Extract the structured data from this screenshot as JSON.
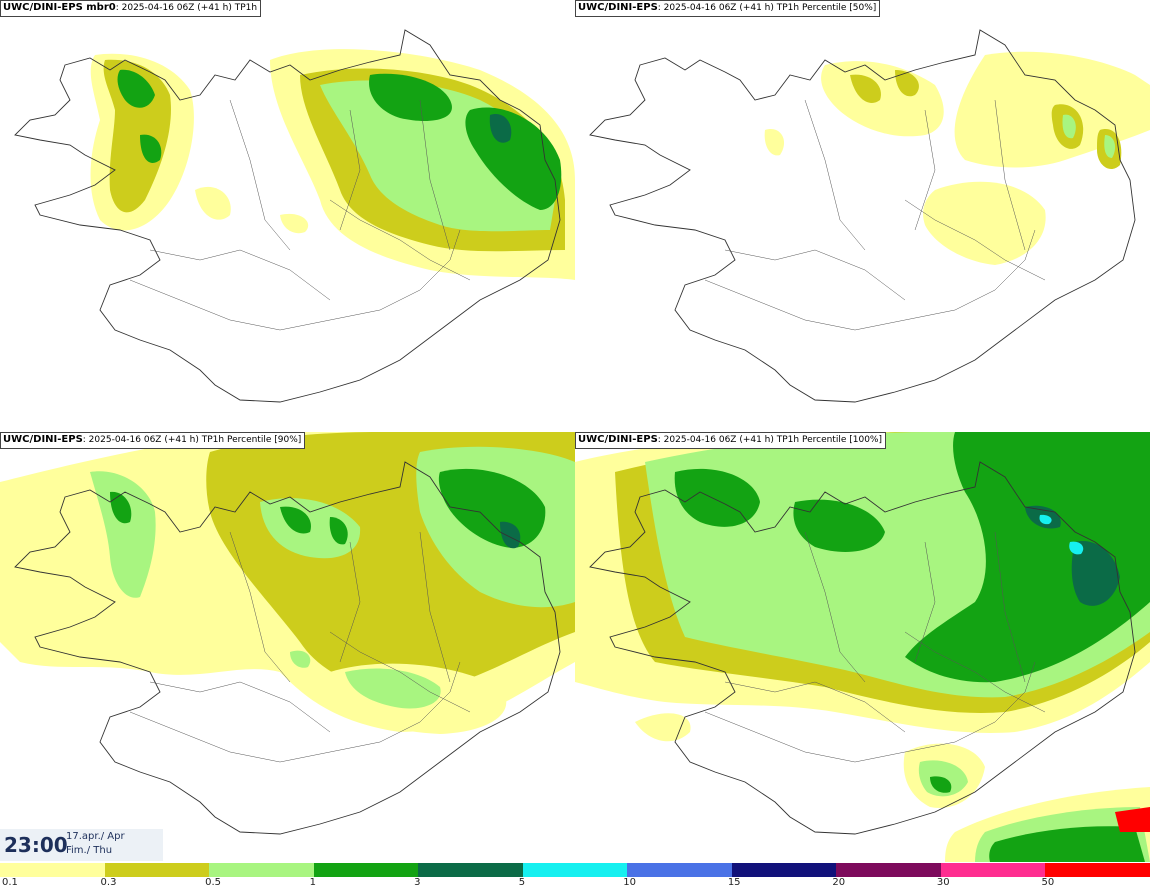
{
  "panels": [
    {
      "model": "UWC/DINI-EPS mbr0",
      "info": "2025-04-16 06Z (+41 h) TP1h"
    },
    {
      "model": "UWC/DINI-EPS",
      "info": "2025-04-16 06Z (+41 h) TP1h Percentile [50%]"
    },
    {
      "model": "UWC/DINI-EPS",
      "info": "2025-04-16 06Z (+41 h) TP1h Percentile [90%]"
    },
    {
      "model": "UWC/DINI-EPS",
      "info": "2025-04-16 06Z (+41 h) TP1h Percentile [100%]"
    }
  ],
  "valid_time": {
    "time": "23:00",
    "date_line1": "17.apr./ Apr",
    "date_line2": "Fim./ Thu"
  },
  "legend": {
    "levels": [
      "0.1",
      "0.3",
      "0.5",
      "1",
      "3",
      "5",
      "10",
      "15",
      "20",
      "30",
      "50"
    ],
    "colors": [
      "#ffff9c",
      "#cdcd1c",
      "#a8f580",
      "#13a313",
      "#0b6b47",
      "#16f0f0",
      "#4a72e6",
      "#11117a",
      "#7d0a5c",
      "#ff2d90",
      "#ff0000"
    ]
  }
}
